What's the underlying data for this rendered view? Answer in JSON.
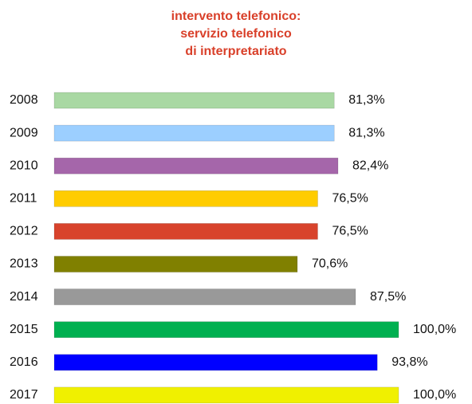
{
  "chart_data": {
    "type": "bar",
    "orientation": "horizontal",
    "title": [
      "intervento telefonico:",
      "servizio telefonico",
      "di interpretariato"
    ],
    "categories": [
      "2008",
      "2009",
      "2010",
      "2011",
      "2012",
      "2013",
      "2014",
      "2015",
      "2016",
      "2017"
    ],
    "values": [
      81.3,
      81.3,
      82.4,
      76.5,
      76.5,
      70.6,
      87.5,
      100.0,
      93.8,
      100.0
    ],
    "value_labels": [
      "81,3%",
      "81,3%",
      "82,4%",
      "76,5%",
      "76,5%",
      "70,6%",
      "87,5%",
      "100,0%",
      "93,8%",
      "100,0%"
    ],
    "colors": [
      "#a9d8a3",
      "#9ccfff",
      "#a566aa",
      "#ffcc00",
      "#d8432c",
      "#808000",
      "#999999",
      "#00b050",
      "#0000ff",
      "#f0f000"
    ],
    "xlim": [
      0,
      100
    ]
  }
}
